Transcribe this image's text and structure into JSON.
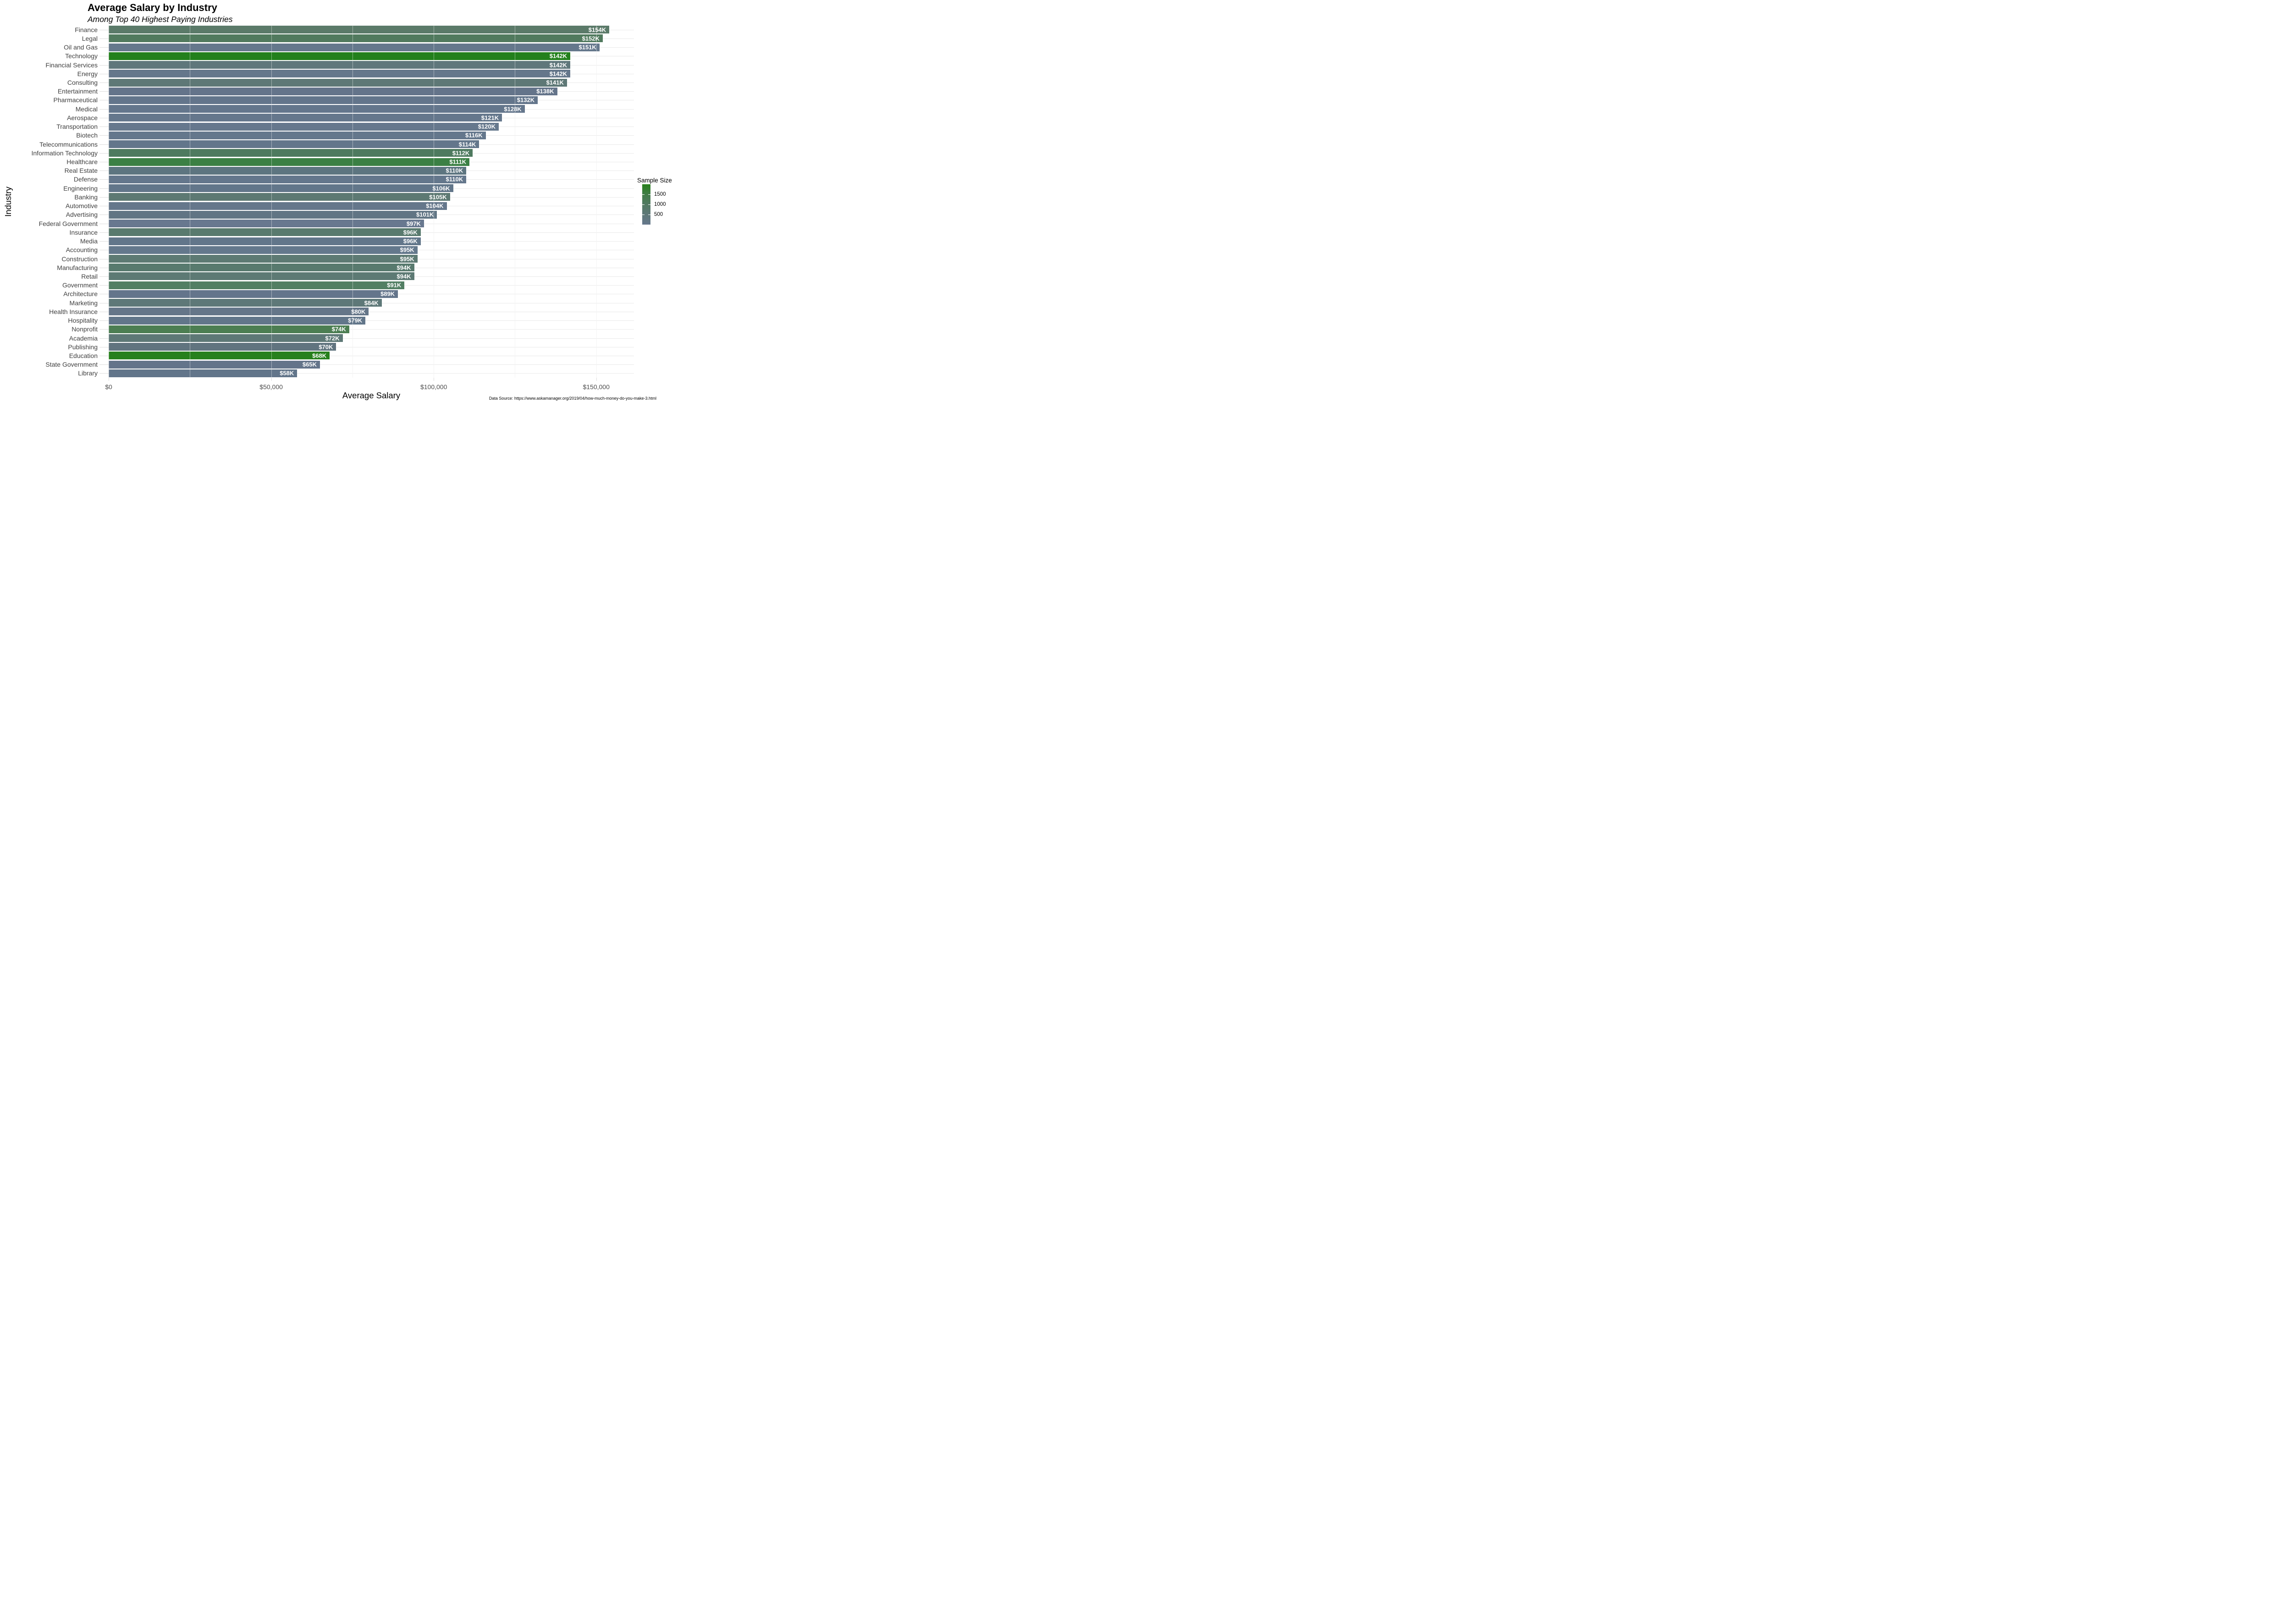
{
  "chart_data": {
    "type": "bar",
    "orientation": "horizontal",
    "title": "Average Salary by Industry",
    "subtitle": "Among Top 40 Highest Paying Industries",
    "xlabel": "Average Salary",
    "ylabel": "Industry",
    "caption": "Data Source: https://www.askamanager.org/2019/04/how-much-money-do-you-make-3.html",
    "grid": "on",
    "x_axis": {
      "ticks": [
        {
          "label": "$0",
          "value": 0
        },
        {
          "label": "$50,000",
          "value": 50000
        },
        {
          "label": "$100,000",
          "value": 100000
        },
        {
          "label": "$150,000",
          "value": 150000
        }
      ],
      "minor_ticks": [
        25000,
        75000,
        125000
      ],
      "max": 161600
    },
    "bars": [
      {
        "industry": "Finance",
        "value": 154000,
        "label": "$154K",
        "color": "#5B7A69"
      },
      {
        "industry": "Legal",
        "value": 152000,
        "label": "$152K",
        "color": "#517A5E"
      },
      {
        "industry": "Oil and Gas",
        "value": 151000,
        "label": "$151K",
        "color": "#65788C"
      },
      {
        "industry": "Technology",
        "value": 142000,
        "label": "$142K",
        "color": "#23801C"
      },
      {
        "industry": "Financial Services",
        "value": 142000,
        "label": "$142K",
        "color": "#5F777B"
      },
      {
        "industry": "Energy",
        "value": 142000,
        "label": "$142K",
        "color": "#65778B"
      },
      {
        "industry": "Consulting",
        "value": 141000,
        "label": "$141K",
        "color": "#5E7876"
      },
      {
        "industry": "Entertainment",
        "value": 138000,
        "label": "$138K",
        "color": "#64748A"
      },
      {
        "industry": "Pharmaceutical",
        "value": 132000,
        "label": "$132K",
        "color": "#63758B"
      },
      {
        "industry": "Medical",
        "value": 128000,
        "label": "$128K",
        "color": "#64768C"
      },
      {
        "industry": "Aerospace",
        "value": 121000,
        "label": "$121K",
        "color": "#65778C"
      },
      {
        "industry": "Transportation",
        "value": 120000,
        "label": "$120K",
        "color": "#66788D"
      },
      {
        "industry": "Biotech",
        "value": 116000,
        "label": "$116K",
        "color": "#64778C"
      },
      {
        "industry": "Telecommunications",
        "value": 114000,
        "label": "$114K",
        "color": "#63768B"
      },
      {
        "industry": "Information Technology",
        "value": 112000,
        "label": "$112K",
        "color": "#4E7A5F"
      },
      {
        "industry": "Healthcare",
        "value": 111000,
        "label": "$111K",
        "color": "#3B8044"
      },
      {
        "industry": "Real Estate",
        "value": 110000,
        "label": "$110K",
        "color": "#5D7580"
      },
      {
        "industry": "Defense",
        "value": 110000,
        "label": "$110K",
        "color": "#64778C"
      },
      {
        "industry": "Engineering",
        "value": 106000,
        "label": "$106K",
        "color": "#62768A"
      },
      {
        "industry": "Banking",
        "value": 105000,
        "label": "$105K",
        "color": "#5D7973"
      },
      {
        "industry": "Automotive",
        "value": 104000,
        "label": "$104K",
        "color": "#65778B"
      },
      {
        "industry": "Advertising",
        "value": 101000,
        "label": "$101K",
        "color": "#617584"
      },
      {
        "industry": "Federal Government",
        "value": 97000,
        "label": "$97K",
        "color": "#68788F"
      },
      {
        "industry": "Insurance",
        "value": 96000,
        "label": "$96K",
        "color": "#597A6E"
      },
      {
        "industry": "Media",
        "value": 96000,
        "label": "$96K",
        "color": "#62768A"
      },
      {
        "industry": "Accounting",
        "value": 95000,
        "label": "$95K",
        "color": "#64788C"
      },
      {
        "industry": "Construction",
        "value": 95000,
        "label": "$95K",
        "color": "#5D7A73"
      },
      {
        "industry": "Manufacturing",
        "value": 94000,
        "label": "$94K",
        "color": "#587A6E"
      },
      {
        "industry": "Retail",
        "value": 94000,
        "label": "$94K",
        "color": "#5D7A74"
      },
      {
        "industry": "Government",
        "value": 91000,
        "label": "$91K",
        "color": "#527F63"
      },
      {
        "industry": "Architecture",
        "value": 89000,
        "label": "$89K",
        "color": "#64758B"
      },
      {
        "industry": "Marketing",
        "value": 84000,
        "label": "$84K",
        "color": "#5E7878"
      },
      {
        "industry": "Health Insurance",
        "value": 80000,
        "label": "$80K",
        "color": "#657689"
      },
      {
        "industry": "Hospitality",
        "value": 79000,
        "label": "$79K",
        "color": "#62768A"
      },
      {
        "industry": "Nonprofit",
        "value": 74000,
        "label": "$74K",
        "color": "#4C7E52"
      },
      {
        "industry": "Academia",
        "value": 72000,
        "label": "$72K",
        "color": "#5E7876"
      },
      {
        "industry": "Publishing",
        "value": 70000,
        "label": "$70K",
        "color": "#61747F"
      },
      {
        "industry": "Education",
        "value": 68000,
        "label": "$68K",
        "color": "#27801D"
      },
      {
        "industry": "State Government",
        "value": 65000,
        "label": "$65K",
        "color": "#64748A"
      },
      {
        "industry": "Library",
        "value": 58000,
        "label": "$58K",
        "color": "#62758A"
      }
    ],
    "legend": {
      "title": "Sample Size",
      "position": "right",
      "domain": [
        0,
        2000
      ],
      "ticks": [
        1500,
        1000,
        500
      ],
      "gradient": [
        "#27801B",
        "#417D47",
        "#527A63",
        "#5E7878",
        "#66788C"
      ]
    },
    "colors": {
      "bar_label": "#FFFFFF",
      "grid": "#E9E9E9",
      "axis_text": "#4D4D4D"
    }
  }
}
